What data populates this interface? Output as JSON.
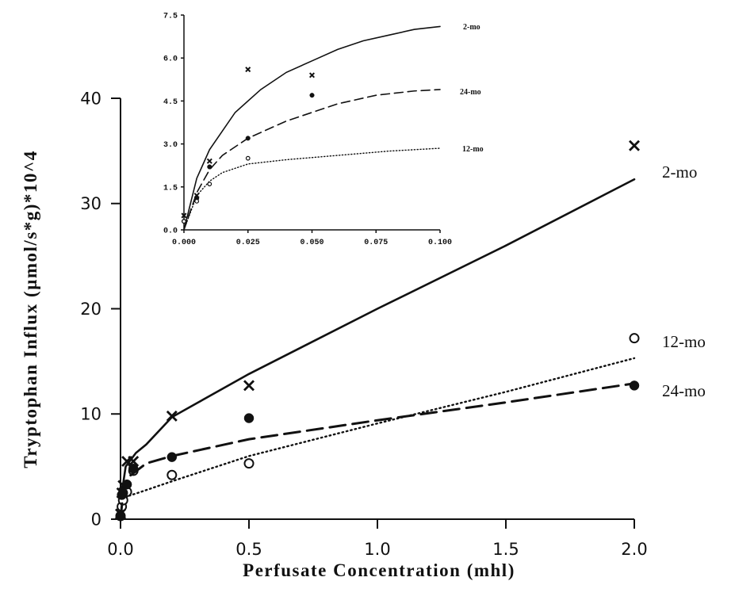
{
  "chart_data": [
    {
      "type": "line",
      "title": "",
      "xlabel": "Perfusate Concentration (mhl)",
      "ylabel": "Tryptophan Influx (µmol/s*g)*10^4",
      "xlim": [
        0,
        2.0
      ],
      "ylim": [
        0,
        40
      ],
      "x_ticks": [
        "0.0",
        "0.5",
        "1.0",
        "1.5",
        "2.0"
      ],
      "y_ticks": [
        "0",
        "10",
        "20",
        "30",
        "40"
      ],
      "grid": false,
      "series": [
        {
          "name": "2-mo",
          "line_style": "solid",
          "marker": "x",
          "points": [
            {
              "x": 0.0,
              "y": 0.5
            },
            {
              "x": 0.005,
              "y": 2.5
            },
            {
              "x": 0.01,
              "y": 3.2
            },
            {
              "x": 0.025,
              "y": 5.5
            },
            {
              "x": 0.05,
              "y": 5.5
            },
            {
              "x": 0.2,
              "y": 9.8
            },
            {
              "x": 0.5,
              "y": 12.7
            },
            {
              "x": 2.0,
              "y": 35.5
            }
          ],
          "fit": [
            {
              "x": 0.0,
              "y": 0.0
            },
            {
              "x": 0.005,
              "y": 2.5
            },
            {
              "x": 0.02,
              "y": 5.0
            },
            {
              "x": 0.06,
              "y": 6.3
            },
            {
              "x": 0.1,
              "y": 7.1
            },
            {
              "x": 0.2,
              "y": 9.7
            },
            {
              "x": 0.5,
              "y": 13.8
            },
            {
              "x": 1.0,
              "y": 20.0
            },
            {
              "x": 1.5,
              "y": 26.0
            },
            {
              "x": 2.0,
              "y": 32.3
            }
          ]
        },
        {
          "name": "12-mo",
          "line_style": "dotted",
          "marker": "open-circle",
          "points": [
            {
              "x": 0.0,
              "y": 0.3
            },
            {
              "x": 0.005,
              "y": 1.2
            },
            {
              "x": 0.01,
              "y": 1.8
            },
            {
              "x": 0.025,
              "y": 2.6
            },
            {
              "x": 0.05,
              "y": 4.6
            },
            {
              "x": 0.2,
              "y": 4.2
            },
            {
              "x": 0.5,
              "y": 5.3
            },
            {
              "x": 2.0,
              "y": 17.2
            }
          ],
          "fit": [
            {
              "x": 0.0,
              "y": 0.0
            },
            {
              "x": 0.01,
              "y": 1.6
            },
            {
              "x": 0.03,
              "y": 2.2
            },
            {
              "x": 0.08,
              "y": 2.6
            },
            {
              "x": 0.2,
              "y": 3.6
            },
            {
              "x": 0.5,
              "y": 6.0
            },
            {
              "x": 1.0,
              "y": 9.1
            },
            {
              "x": 1.5,
              "y": 12.1
            },
            {
              "x": 2.0,
              "y": 15.3
            }
          ]
        },
        {
          "name": "24-mo",
          "line_style": "dashed",
          "marker": "filled-circle",
          "points": [
            {
              "x": 0.0,
              "y": 0.3
            },
            {
              "x": 0.005,
              "y": 2.3
            },
            {
              "x": 0.01,
              "y": 2.5
            },
            {
              "x": 0.025,
              "y": 3.3
            },
            {
              "x": 0.05,
              "y": 4.8
            },
            {
              "x": 0.2,
              "y": 5.9
            },
            {
              "x": 0.5,
              "y": 9.6
            },
            {
              "x": 2.0,
              "y": 12.7
            }
          ],
          "fit": [
            {
              "x": 0.0,
              "y": 0.0
            },
            {
              "x": 0.01,
              "y": 2.5
            },
            {
              "x": 0.03,
              "y": 4.0
            },
            {
              "x": 0.1,
              "y": 5.3
            },
            {
              "x": 0.2,
              "y": 6.0
            },
            {
              "x": 0.5,
              "y": 7.6
            },
            {
              "x": 1.0,
              "y": 9.4
            },
            {
              "x": 1.5,
              "y": 11.1
            },
            {
              "x": 2.0,
              "y": 12.9
            }
          ]
        }
      ]
    },
    {
      "type": "line",
      "title": "",
      "xlabel": "",
      "ylabel": "",
      "xlim": [
        0,
        0.1
      ],
      "ylim": [
        0,
        7.5
      ],
      "x_ticks": [
        "0.000",
        "0.025",
        "0.050",
        "0.075",
        "0.100"
      ],
      "y_ticks": [
        "0.0",
        "1.5",
        "3.0",
        "4.5",
        "6.0",
        "7.5"
      ],
      "grid": false,
      "series": [
        {
          "name": "2-mo",
          "line_style": "solid",
          "marker": "x",
          "points": [
            {
              "x": 0.0,
              "y": 0.5
            },
            {
              "x": 0.005,
              "y": 1.2
            },
            {
              "x": 0.01,
              "y": 2.4
            },
            {
              "x": 0.025,
              "y": 5.6
            },
            {
              "x": 0.05,
              "y": 5.4
            }
          ],
          "fit": [
            {
              "x": 0.0,
              "y": 0.0
            },
            {
              "x": 0.005,
              "y": 1.8
            },
            {
              "x": 0.01,
              "y": 2.8
            },
            {
              "x": 0.02,
              "y": 4.1
            },
            {
              "x": 0.03,
              "y": 4.9
            },
            {
              "x": 0.04,
              "y": 5.5
            },
            {
              "x": 0.05,
              "y": 5.9
            },
            {
              "x": 0.06,
              "y": 6.3
            },
            {
              "x": 0.07,
              "y": 6.6
            },
            {
              "x": 0.08,
              "y": 6.8
            },
            {
              "x": 0.09,
              "y": 7.0
            },
            {
              "x": 0.1,
              "y": 7.1
            }
          ]
        },
        {
          "name": "24-mo",
          "line_style": "dashed",
          "marker": "filled-circle",
          "points": [
            {
              "x": 0.0,
              "y": 0.3
            },
            {
              "x": 0.005,
              "y": 1.1
            },
            {
              "x": 0.01,
              "y": 2.2
            },
            {
              "x": 0.025,
              "y": 3.2
            },
            {
              "x": 0.05,
              "y": 4.7
            }
          ],
          "fit": [
            {
              "x": 0.0,
              "y": 0.0
            },
            {
              "x": 0.005,
              "y": 1.3
            },
            {
              "x": 0.01,
              "y": 2.1
            },
            {
              "x": 0.015,
              "y": 2.6
            },
            {
              "x": 0.025,
              "y": 3.2
            },
            {
              "x": 0.04,
              "y": 3.8
            },
            {
              "x": 0.05,
              "y": 4.1
            },
            {
              "x": 0.06,
              "y": 4.4
            },
            {
              "x": 0.075,
              "y": 4.7
            },
            {
              "x": 0.09,
              "y": 4.85
            },
            {
              "x": 0.1,
              "y": 4.9
            }
          ]
        },
        {
          "name": "12-mo",
          "line_style": "dotted",
          "marker": "open-circle",
          "points": [
            {
              "x": 0.0,
              "y": 0.3
            },
            {
              "x": 0.005,
              "y": 1.0
            },
            {
              "x": 0.01,
              "y": 1.6
            },
            {
              "x": 0.025,
              "y": 2.5
            }
          ],
          "fit": [
            {
              "x": 0.0,
              "y": 0.0
            },
            {
              "x": 0.005,
              "y": 1.2
            },
            {
              "x": 0.01,
              "y": 1.7
            },
            {
              "x": 0.015,
              "y": 2.0
            },
            {
              "x": 0.025,
              "y": 2.3
            },
            {
              "x": 0.04,
              "y": 2.45
            },
            {
              "x": 0.06,
              "y": 2.6
            },
            {
              "x": 0.08,
              "y": 2.75
            },
            {
              "x": 0.1,
              "y": 2.85
            }
          ]
        }
      ]
    }
  ]
}
